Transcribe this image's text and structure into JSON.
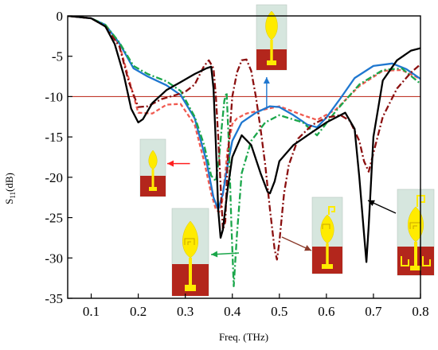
{
  "chart_data": {
    "type": "line",
    "xlabel": "Freq. (THz)",
    "ylabel": "S11(dB)",
    "ylabel_main": "S",
    "ylabel_sub": "11",
    "ylabel_unit": "(dB)",
    "xlim": [
      0.05,
      0.8
    ],
    "ylim": [
      -35,
      0
    ],
    "x_ticks": [
      0.1,
      0.2,
      0.3,
      0.4,
      0.5,
      0.6,
      0.7,
      0.8
    ],
    "y_ticks": [
      0,
      -5,
      -10,
      -15,
      -20,
      -25,
      -30,
      -35
    ],
    "x_tick_labels": [
      "0.1",
      "0.2",
      "0.3",
      "0.4",
      "0.5",
      "0.6",
      "0.7",
      "0.8"
    ],
    "y_tick_labels": [
      "0",
      "-5",
      "-10",
      "-15",
      "-20",
      "-25",
      "-30",
      "-35"
    ],
    "reference_line": {
      "y": -10,
      "color": "#c0392b"
    },
    "grid": false,
    "series": [
      {
        "color": "#f05a50",
        "style": "dash",
        "x": [
          0.05,
          0.1,
          0.13,
          0.16,
          0.18,
          0.2,
          0.23,
          0.26,
          0.29,
          0.32,
          0.34,
          0.355,
          0.365,
          0.372,
          0.378,
          0.385,
          0.39,
          0.4,
          0.41,
          0.43,
          0.46,
          0.5,
          0.55,
          0.58,
          0.62,
          0.67,
          0.72,
          0.76,
          0.8
        ],
        "y": [
          0,
          -0.3,
          -1.2,
          -3.6,
          -7.8,
          -12.0,
          -12.1,
          -11.0,
          -10.9,
          -13.5,
          -18.0,
          -22.0,
          -24.0,
          -24.3,
          -23.2,
          -19.5,
          -16.5,
          -13.4,
          -12.7,
          -12.1,
          -11.7,
          -11.2,
          -12.3,
          -12.9,
          -11.6,
          -8.7,
          -6.8,
          -6.7,
          -7.8
        ]
      },
      {
        "color": "#1f77d0",
        "style": "solid",
        "x": [
          0.05,
          0.1,
          0.13,
          0.16,
          0.19,
          0.22,
          0.26,
          0.29,
          0.32,
          0.345,
          0.36,
          0.37,
          0.38,
          0.39,
          0.4,
          0.42,
          0.45,
          0.48,
          0.5,
          0.53,
          0.56,
          0.58,
          0.6,
          0.63,
          0.66,
          0.7,
          0.74,
          0.77,
          0.8
        ],
        "y": [
          0,
          -0.3,
          -1.1,
          -3.4,
          -6.5,
          -7.5,
          -8.6,
          -9.8,
          -12.7,
          -18.0,
          -22.5,
          -24.0,
          -22.0,
          -18.5,
          -15.5,
          -13.2,
          -12.0,
          -11.2,
          -11.3,
          -12.3,
          -13.5,
          -13.8,
          -12.6,
          -10.2,
          -7.7,
          -6.2,
          -5.9,
          -6.6,
          -7.8
        ]
      },
      {
        "color": "#1aa64a",
        "style": "dashdot",
        "x": [
          0.05,
          0.1,
          0.13,
          0.16,
          0.19,
          0.22,
          0.26,
          0.29,
          0.32,
          0.34,
          0.355,
          0.365,
          0.372,
          0.378,
          0.383,
          0.388,
          0.393,
          0.398,
          0.403,
          0.41,
          0.42,
          0.44,
          0.47,
          0.5,
          0.55,
          0.58,
          0.62,
          0.67,
          0.72,
          0.76,
          0.8
        ],
        "y": [
          0,
          -0.3,
          -1.1,
          -3.3,
          -6.2,
          -7.2,
          -8.1,
          -9.3,
          -12.5,
          -16.0,
          -19.8,
          -20.5,
          -17.5,
          -13.5,
          -10.5,
          -9.5,
          -16.5,
          -26.0,
          -33.5,
          -27.0,
          -19.5,
          -15.5,
          -13.2,
          -12.3,
          -13.2,
          -14.8,
          -11.8,
          -8.5,
          -6.7,
          -6.5,
          -8.4
        ]
      },
      {
        "color": "#8b1010",
        "style": "dashdot",
        "x": [
          0.05,
          0.1,
          0.13,
          0.16,
          0.18,
          0.2,
          0.22,
          0.25,
          0.28,
          0.3,
          0.32,
          0.34,
          0.35,
          0.36,
          0.365,
          0.37,
          0.375,
          0.38,
          0.385,
          0.39,
          0.4,
          0.41,
          0.42,
          0.43,
          0.44,
          0.45,
          0.46,
          0.47,
          0.48,
          0.49,
          0.495,
          0.5,
          0.51,
          0.52,
          0.54,
          0.57,
          0.6,
          0.63,
          0.65,
          0.67,
          0.68,
          0.69,
          0.7,
          0.72,
          0.75,
          0.78,
          0.8
        ],
        "y": [
          0,
          -0.3,
          -1.3,
          -3.8,
          -8.2,
          -11.3,
          -11.2,
          -10.3,
          -9.8,
          -9.4,
          -8.5,
          -6.2,
          -5.5,
          -6.5,
          -10.0,
          -15.0,
          -21.0,
          -26.5,
          -25.5,
          -18.0,
          -10.0,
          -7.0,
          -5.5,
          -5.4,
          -6.8,
          -10.0,
          -14.0,
          -18.5,
          -24.0,
          -29.0,
          -30.2,
          -28.0,
          -22.0,
          -18.5,
          -15.2,
          -13.5,
          -12.6,
          -12.3,
          -13.0,
          -15.5,
          -18.0,
          -19.3,
          -17.0,
          -12.5,
          -9.0,
          -7.0,
          -6.0
        ]
      },
      {
        "color": "#000000",
        "style": "solid",
        "x": [
          0.05,
          0.1,
          0.13,
          0.15,
          0.17,
          0.185,
          0.2,
          0.21,
          0.23,
          0.26,
          0.29,
          0.32,
          0.345,
          0.355,
          0.36,
          0.365,
          0.37,
          0.375,
          0.38,
          0.39,
          0.4,
          0.42,
          0.44,
          0.46,
          0.475,
          0.48,
          0.49,
          0.5,
          0.53,
          0.56,
          0.6,
          0.64,
          0.66,
          0.67,
          0.68,
          0.685,
          0.69,
          0.7,
          0.72,
          0.75,
          0.78,
          0.8
        ],
        "y": [
          0,
          -0.3,
          -1.3,
          -3.5,
          -7.5,
          -11.5,
          -13.2,
          -12.8,
          -10.8,
          -9.2,
          -8.2,
          -7.2,
          -6.5,
          -6.3,
          -9.0,
          -16.0,
          -24.0,
          -27.5,
          -26.5,
          -21.5,
          -17.5,
          -14.8,
          -16.0,
          -19.5,
          -21.8,
          -22.0,
          -20.5,
          -18.0,
          -16.0,
          -14.8,
          -13.2,
          -12.0,
          -14.0,
          -20.0,
          -27.0,
          -30.5,
          -26.0,
          -15.0,
          -8.0,
          -5.5,
          -4.3,
          -4.0
        ]
      }
    ]
  },
  "annotations": [
    {
      "target": {
        "x": 0.315,
        "y": -18.3
      },
      "color": "#ff2020",
      "arrow": "left"
    },
    {
      "target": {
        "x": 0.473,
        "y": -7.3
      },
      "color": "#1f77d0",
      "arrow": "up"
    },
    {
      "target": {
        "x": 0.37,
        "y": -29.5
      },
      "color": "#1aa64a",
      "arrow": "left"
    },
    {
      "target": {
        "x": 0.5,
        "y": -28.0
      },
      "color": "#8b3a2a",
      "arrow": "left"
    },
    {
      "target": {
        "x": 0.65,
        "y": -24.5
      },
      "color": "#000000",
      "arrow": "left"
    }
  ],
  "insets": [
    {
      "id": "inset-basic-leaf"
    },
    {
      "id": "inset-top-leaf"
    },
    {
      "id": "inset-slot-leaf"
    },
    {
      "id": "inset-hook-leaf"
    },
    {
      "id": "inset-full-leaf"
    }
  ]
}
